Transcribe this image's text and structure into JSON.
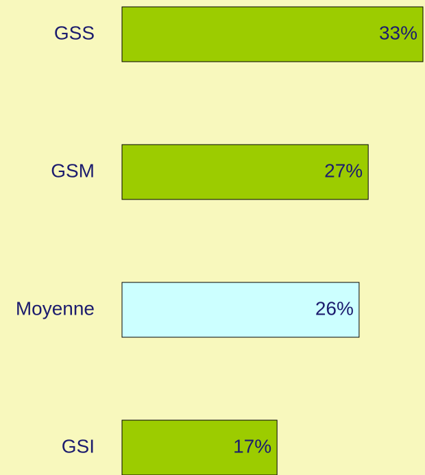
{
  "chart_data": {
    "type": "bar",
    "orientation": "horizontal",
    "categories": [
      "GSS",
      "GSM",
      "Moyenne",
      "GSI"
    ],
    "values": [
      33,
      27,
      26,
      17
    ],
    "value_labels": [
      "33%",
      "27%",
      "26%",
      "17%"
    ],
    "colors": [
      "#9ccc00",
      "#9ccc00",
      "#ccffff",
      "#9ccc00"
    ]
  }
}
